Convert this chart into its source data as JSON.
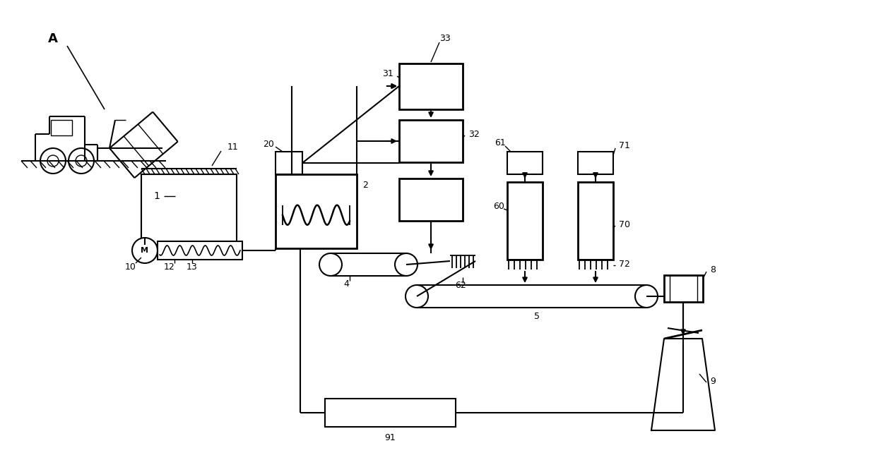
{
  "bg_color": "#ffffff",
  "lc": "#000000",
  "fig_w": 12.4,
  "fig_h": 6.52
}
